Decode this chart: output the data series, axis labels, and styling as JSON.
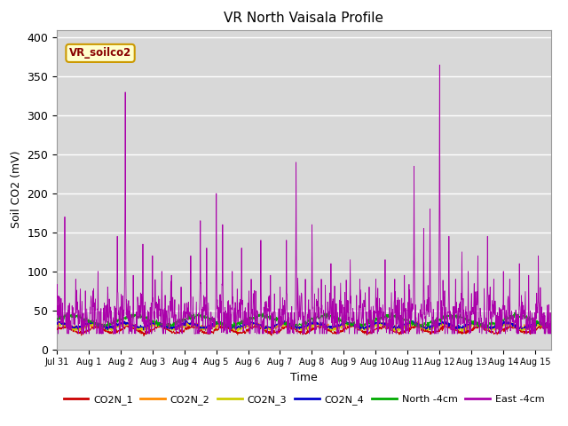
{
  "title": "VR North Vaisala Profile",
  "xlabel": "Time",
  "ylabel": "Soil CO2 (mV)",
  "annotation": "VR_soilco2",
  "xlim_days": [
    0,
    15.5
  ],
  "ylim": [
    0,
    410
  ],
  "yticks": [
    0,
    50,
    100,
    150,
    200,
    250,
    300,
    350,
    400
  ],
  "xtick_labels": [
    "Jul 31",
    "Aug 1",
    "Aug 2",
    "Aug 3",
    "Aug 4",
    "Aug 5",
    "Aug 6",
    "Aug 7",
    "Aug 8",
    "Aug 9",
    "Aug 10",
    "Aug 11",
    "Aug 12",
    "Aug 13",
    "Aug 14",
    "Aug 15"
  ],
  "bg_color": "#d8d8d8",
  "fig_color": "#ffffff",
  "colors": {
    "CO2N_1": "#cc0000",
    "CO2N_2": "#ff8800",
    "CO2N_3": "#cccc00",
    "CO2N_4": "#0000cc",
    "North_4cm": "#00aa00",
    "East_4cm": "#aa00aa"
  },
  "legend_labels": [
    "CO2N_1",
    "CO2N_2",
    "CO2N_3",
    "CO2N_4",
    "North -4cm",
    "East -4cm"
  ],
  "seed": 42
}
